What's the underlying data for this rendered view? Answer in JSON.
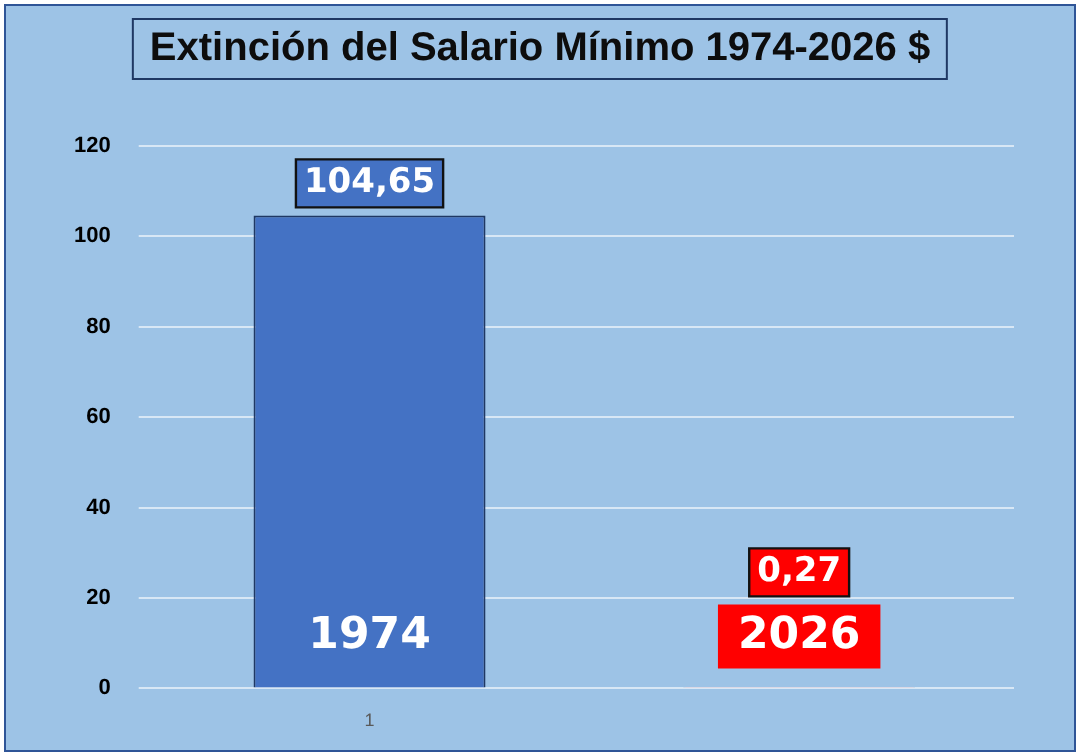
{
  "chart_data": {
    "type": "bar",
    "title": "Extinción del Salario Mínimo 1974-2026 $",
    "categories": [
      "1",
      null
    ],
    "series": [
      {
        "name": "1974",
        "color": "#4472c4",
        "values": [
          104.65,
          null
        ],
        "value_labels": [
          "104,65",
          null
        ]
      },
      {
        "name": "2026",
        "color": "#ff0000",
        "values": [
          null,
          0.27
        ],
        "value_labels": [
          null,
          "0,27"
        ]
      }
    ],
    "ylim": [
      0,
      120
    ],
    "yticks": [
      0,
      20,
      40,
      60,
      80,
      100,
      120
    ],
    "grid": "y"
  }
}
